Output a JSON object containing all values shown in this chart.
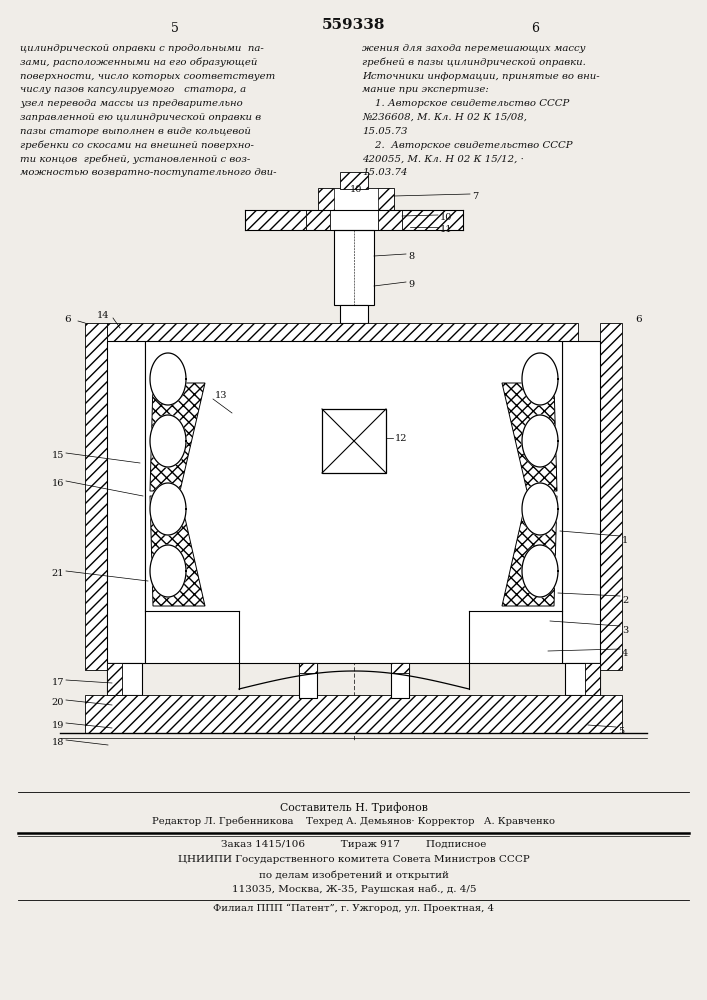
{
  "page_width": 7.07,
  "page_height": 10.0,
  "bg_color": "#f0ede8",
  "text_color": "#111111",
  "header_number_left": "5",
  "header_number_center": "559338",
  "header_number_right": "6",
  "left_text_lines": [
    "цилиндрической оправки с продольными  па-",
    "зами, расположенными на его образующей",
    "поверхности, число которых соответствует",
    "числу пазов капсулируемого   статора, а",
    "узел перевода массы из предварительно",
    "заправленной ею цилиндрической оправки в",
    "пазы статоре выполнен в виде кольцевой",
    "гребенки со скосами на внешней поверхно-",
    "ти концов  гребней, установленной с воз-",
    "можностью возвратно-поступательного дви-"
  ],
  "right_text_lines": [
    "жения для захода перемешающих массу",
    "гребней в пазы цилиндрической оправки.",
    "Источники информации, принятые во вни-",
    "мание при экспертизе:",
    "    1. Авторское свидетельство СССР",
    "№236608, М. Кл. Н 02 К 15/08,",
    "15.05.73",
    "    2.  Авторское свидетельство СССР",
    "420055, М. Кл. Н 02 К 15/12, ·",
    "15.03.74"
  ],
  "footer_line1": "Составитель Н. Трифонов",
  "footer_line2": "Редактор Л. Гребенникова    Техред А. Демьянов· Корректор   А. Кравченко",
  "footer_line3": "Заказ 1415/106           Тираж 917        Подписное",
  "footer_line4": "ЦНИИПИ Государственного комитета Совета Министров СССР",
  "footer_line5": "по делам изобретений и открытий",
  "footer_line6": "113035, Москва, Ж-35, Раушская наб., д. 4/5",
  "footer_line7": "Филиал ППП “Патент”, г. Ужгород, ул. Проектная, 4"
}
